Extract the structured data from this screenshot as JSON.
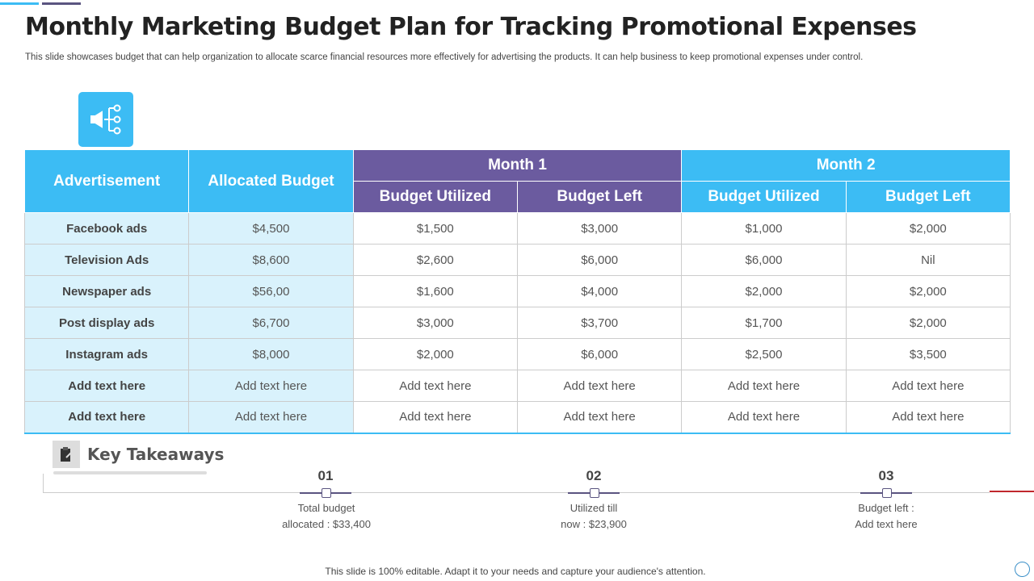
{
  "title": "Monthly Marketing Budget Plan for Tracking Promotional Expenses",
  "subtitle": "This slide showcases budget that can help organization to allocate scarce financial resources more effectively for advertising the products. It can help business to keep promotional expenses under control.",
  "table": {
    "headers": {
      "advertisement": "Advertisement",
      "allocated": "Allocated Budget",
      "month1": "Month 1",
      "month2": "Month 2",
      "utilized": "Budget Utilized",
      "left": "Budget Left"
    },
    "rows": [
      [
        "Facebook ads",
        "$4,500",
        "$1,500",
        "$3,000",
        "$1,000",
        "$2,000"
      ],
      [
        "Television Ads",
        "$8,600",
        "$2,600",
        "$6,000",
        "$6,000",
        "Nil"
      ],
      [
        "Newspaper ads",
        "$56,00",
        "$1,600",
        "$4,000",
        "$2,000",
        "$2,000"
      ],
      [
        "Post display ads",
        "$6,700",
        "$3,000",
        "$3,700",
        "$1,700",
        "$2,000"
      ],
      [
        "Instagram ads",
        "$8,000",
        "$2,000",
        "$6,000",
        "$2,500",
        "$3,500"
      ],
      [
        "Add text here",
        "Add text here",
        "Add text here",
        "Add text here",
        "Add text here",
        "Add text here"
      ],
      [
        "Add text here",
        "Add text here",
        "Add text here",
        "Add text here",
        "Add text here",
        "Add text here"
      ]
    ]
  },
  "takeaways": {
    "title": "Key Takeaways",
    "items": [
      {
        "num": "01",
        "line1": "Total  budget",
        "line2": "allocated : $33,400"
      },
      {
        "num": "02",
        "line1": "Utilized till",
        "line2": "now : $23,900"
      },
      {
        "num": "03",
        "line1": "Budget left :",
        "line2": "Add text here"
      }
    ]
  },
  "footer": "This slide is 100% editable. Adapt it to your needs and capture your audience's attention.",
  "colors": {
    "blue": "#3cbcf4",
    "purple": "#6b5b9f",
    "light": "#d9f2fc"
  }
}
